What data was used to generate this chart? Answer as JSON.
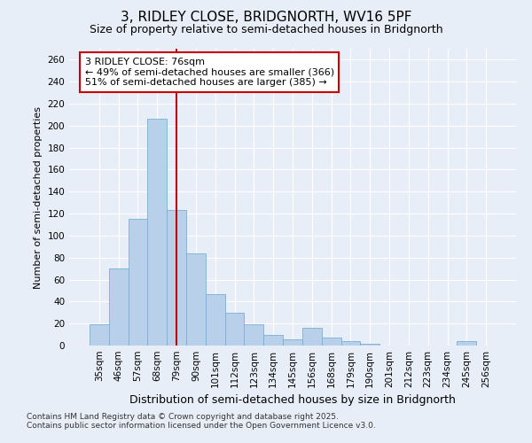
{
  "title_line1": "3, RIDLEY CLOSE, BRIDGNORTH, WV16 5PF",
  "title_line2": "Size of property relative to semi-detached houses in Bridgnorth",
  "xlabel": "Distribution of semi-detached houses by size in Bridgnorth",
  "ylabel": "Number of semi-detached properties",
  "footer_line1": "Contains HM Land Registry data © Crown copyright and database right 2025.",
  "footer_line2": "Contains public sector information licensed under the Open Government Licence v3.0.",
  "annotation_line1": "3 RIDLEY CLOSE: 76sqm",
  "annotation_line2": "← 49% of semi-detached houses are smaller (366)",
  "annotation_line3": "51% of semi-detached houses are larger (385) →",
  "bar_color": "#b8d0ea",
  "bar_edge_color": "#7aafd4",
  "background_color": "#e8eef8",
  "grid_color": "#ffffff",
  "vline_color": "#cc0000",
  "annotation_box_edge_color": "#cc0000",
  "categories": [
    "35sqm",
    "46sqm",
    "57sqm",
    "68sqm",
    "79sqm",
    "90sqm",
    "101sqm",
    "112sqm",
    "123sqm",
    "134sqm",
    "145sqm",
    "156sqm",
    "168sqm",
    "179sqm",
    "190sqm",
    "201sqm",
    "212sqm",
    "223sqm",
    "234sqm",
    "245sqm",
    "256sqm"
  ],
  "values": [
    19,
    70,
    115,
    206,
    123,
    84,
    47,
    30,
    19,
    10,
    6,
    16,
    7,
    4,
    2,
    0,
    0,
    0,
    0,
    4,
    0
  ],
  "ylim": [
    0,
    270
  ],
  "yticks": [
    0,
    20,
    40,
    60,
    80,
    100,
    120,
    140,
    160,
    180,
    200,
    220,
    240,
    260
  ],
  "vline_position": 4.0,
  "title_fontsize": 11,
  "subtitle_fontsize": 9,
  "ylabel_fontsize": 8,
  "xlabel_fontsize": 9,
  "tick_fontsize": 7.5,
  "footer_fontsize": 6.5,
  "annotation_fontsize": 8
}
